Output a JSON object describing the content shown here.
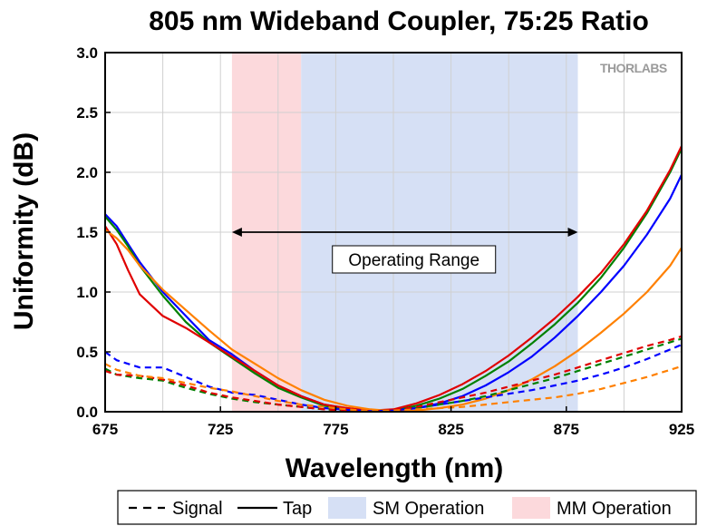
{
  "chart_data": {
    "type": "line",
    "title": "805 nm Wideband Coupler, 75:25 Ratio",
    "xlabel": "Wavelength (nm)",
    "ylabel": "Uniformity (dB)",
    "xlim": [
      675,
      925
    ],
    "ylim": [
      0,
      3.0
    ],
    "xticks": [
      675,
      725,
      775,
      825,
      875,
      925
    ],
    "yticks": [
      0.0,
      0.5,
      1.0,
      1.5,
      2.0,
      2.5,
      3.0
    ],
    "ytick_labels": [
      "0.0",
      "0.5",
      "1.0",
      "1.5",
      "2.0",
      "2.5",
      "3.0"
    ],
    "grid": true,
    "legend_position": "bottom",
    "legend": [
      {
        "label": "Signal",
        "kind": "dashed-line"
      },
      {
        "label": "Tap",
        "kind": "solid-line"
      },
      {
        "label": "SM Operation",
        "kind": "patch",
        "color": "#d6e0f5"
      },
      {
        "label": "MM Operation",
        "kind": "patch",
        "color": "#fcd9dc"
      }
    ],
    "regions": [
      {
        "label": "MM Operation",
        "x": [
          730,
          760
        ],
        "color": "#fcd9dc"
      },
      {
        "label": "SM Operation",
        "x": [
          760,
          880
        ],
        "color": "#d6e0f5"
      }
    ],
    "annotation": {
      "text": "Operating Range",
      "x": [
        730,
        880
      ],
      "y": 1.5
    },
    "logo": "THORLABS",
    "series": [
      {
        "style": "solid",
        "color": "#0000ff",
        "x": [
          675,
          680,
          685,
          690,
          700,
          710,
          720,
          730,
          740,
          750,
          760,
          770,
          780,
          790,
          800,
          810,
          820,
          830,
          840,
          850,
          860,
          870,
          880,
          890,
          900,
          910,
          920,
          925
        ],
        "y": [
          1.65,
          1.55,
          1.4,
          1.25,
          1.0,
          0.8,
          0.6,
          0.48,
          0.34,
          0.22,
          0.13,
          0.06,
          0.025,
          0.005,
          0.005,
          0.03,
          0.07,
          0.13,
          0.22,
          0.33,
          0.46,
          0.62,
          0.8,
          1.0,
          1.22,
          1.48,
          1.78,
          1.98
        ]
      },
      {
        "style": "solid",
        "color": "#008000",
        "x": [
          675,
          680,
          685,
          690,
          700,
          710,
          720,
          730,
          740,
          750,
          760,
          770,
          780,
          790,
          800,
          810,
          820,
          830,
          840,
          850,
          860,
          870,
          880,
          890,
          900,
          910,
          920,
          925
        ],
        "y": [
          1.63,
          1.52,
          1.38,
          1.22,
          0.97,
          0.75,
          0.58,
          0.45,
          0.32,
          0.2,
          0.12,
          0.05,
          0.02,
          0.005,
          0.01,
          0.05,
          0.11,
          0.19,
          0.3,
          0.42,
          0.57,
          0.73,
          0.91,
          1.12,
          1.37,
          1.66,
          2.0,
          2.2
        ]
      },
      {
        "style": "solid",
        "color": "#e00000",
        "x": [
          675,
          680,
          685,
          690,
          700,
          710,
          720,
          730,
          740,
          750,
          760,
          770,
          780,
          790,
          800,
          810,
          820,
          830,
          840,
          850,
          860,
          870,
          880,
          890,
          900,
          910,
          920,
          925
        ],
        "y": [
          1.55,
          1.4,
          1.18,
          0.98,
          0.8,
          0.7,
          0.58,
          0.46,
          0.34,
          0.22,
          0.13,
          0.06,
          0.03,
          0.01,
          0.02,
          0.07,
          0.14,
          0.23,
          0.34,
          0.47,
          0.62,
          0.78,
          0.96,
          1.16,
          1.4,
          1.68,
          2.02,
          2.22
        ]
      },
      {
        "style": "solid",
        "color": "#ff8000",
        "x": [
          675,
          680,
          685,
          690,
          700,
          710,
          720,
          730,
          740,
          750,
          760,
          770,
          780,
          790,
          800,
          810,
          820,
          830,
          840,
          850,
          860,
          870,
          880,
          890,
          900,
          910,
          920,
          925
        ],
        "y": [
          1.52,
          1.45,
          1.35,
          1.22,
          1.02,
          0.85,
          0.68,
          0.52,
          0.4,
          0.28,
          0.18,
          0.1,
          0.05,
          0.02,
          0.005,
          0.01,
          0.03,
          0.06,
          0.11,
          0.18,
          0.27,
          0.38,
          0.51,
          0.66,
          0.82,
          1.0,
          1.22,
          1.37
        ]
      },
      {
        "style": "dashed",
        "color": "#0000ff",
        "x": [
          675,
          680,
          690,
          700,
          710,
          720,
          730,
          740,
          750,
          760,
          770,
          780,
          790,
          800,
          810,
          820,
          830,
          840,
          850,
          860,
          870,
          880,
          890,
          900,
          910,
          920,
          925
        ],
        "y": [
          0.5,
          0.43,
          0.37,
          0.37,
          0.29,
          0.21,
          0.16,
          0.14,
          0.1,
          0.06,
          0.03,
          0.015,
          0.005,
          0.01,
          0.03,
          0.06,
          0.09,
          0.12,
          0.15,
          0.18,
          0.22,
          0.26,
          0.31,
          0.37,
          0.44,
          0.52,
          0.56
        ]
      },
      {
        "style": "dashed",
        "color": "#008000",
        "x": [
          675,
          680,
          690,
          700,
          710,
          720,
          730,
          740,
          750,
          760,
          770,
          780,
          790,
          800,
          810,
          820,
          830,
          840,
          850,
          860,
          870,
          880,
          890,
          900,
          910,
          920,
          925
        ],
        "y": [
          0.36,
          0.31,
          0.28,
          0.26,
          0.2,
          0.15,
          0.11,
          0.08,
          0.06,
          0.04,
          0.02,
          0.01,
          0.005,
          0.01,
          0.03,
          0.06,
          0.09,
          0.13,
          0.18,
          0.23,
          0.28,
          0.34,
          0.4,
          0.46,
          0.52,
          0.58,
          0.61
        ]
      },
      {
        "style": "dashed",
        "color": "#e00000",
        "x": [
          675,
          680,
          690,
          700,
          710,
          720,
          730,
          740,
          750,
          760,
          770,
          780,
          790,
          800,
          810,
          820,
          830,
          840,
          850,
          860,
          870,
          880,
          890,
          900,
          910,
          920,
          925
        ],
        "y": [
          0.34,
          0.31,
          0.3,
          0.27,
          0.22,
          0.16,
          0.12,
          0.09,
          0.06,
          0.04,
          0.02,
          0.01,
          0.005,
          0.01,
          0.04,
          0.08,
          0.12,
          0.16,
          0.21,
          0.26,
          0.31,
          0.37,
          0.43,
          0.49,
          0.55,
          0.6,
          0.63
        ]
      },
      {
        "style": "dashed",
        "color": "#ff8000",
        "x": [
          675,
          680,
          690,
          700,
          710,
          720,
          730,
          740,
          750,
          760,
          770,
          780,
          790,
          800,
          810,
          820,
          830,
          840,
          850,
          860,
          870,
          880,
          890,
          900,
          910,
          920,
          925
        ],
        "y": [
          0.4,
          0.35,
          0.3,
          0.28,
          0.24,
          0.2,
          0.17,
          0.13,
          0.09,
          0.06,
          0.04,
          0.02,
          0.005,
          0.01,
          0.02,
          0.03,
          0.04,
          0.06,
          0.08,
          0.1,
          0.12,
          0.15,
          0.19,
          0.24,
          0.29,
          0.35,
          0.38
        ]
      }
    ]
  }
}
